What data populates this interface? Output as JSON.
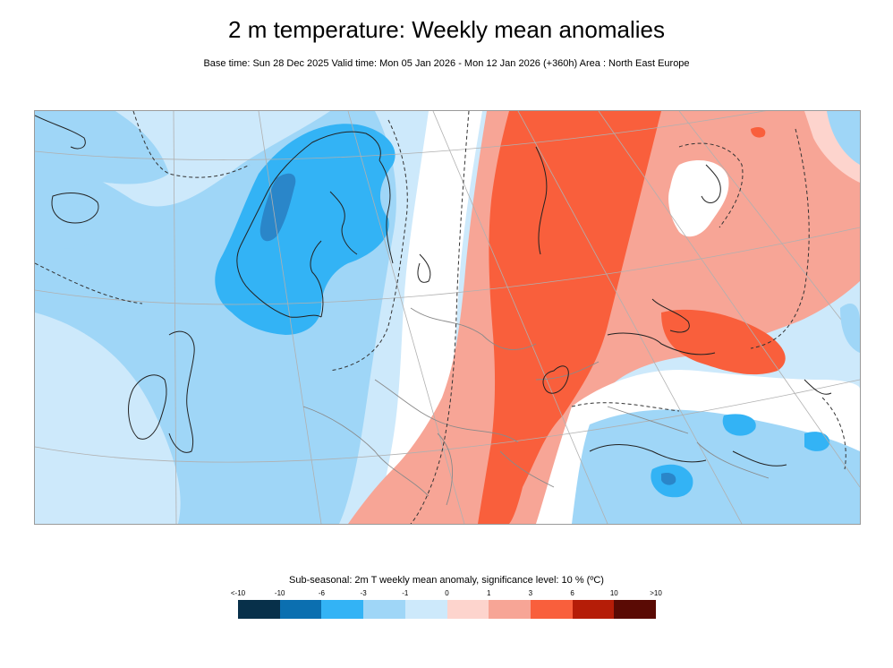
{
  "title": "2 m temperature: Weekly mean anomalies",
  "subtitle": "Base time: Sun 28 Dec 2025 Valid time: Mon 05 Jan 2026 - Mon 12 Jan 2026 (+360h) Area : North East Europe",
  "legend": {
    "title": "Sub-seasonal: 2m T weekly mean anomaly, significance level: 10 % (ºC)",
    "labels": [
      "<-10",
      "-10",
      "-6",
      "-3",
      "-1",
      "0",
      "1",
      "3",
      "6",
      "10",
      ">10"
    ],
    "colors": [
      "#08304a",
      "#0b6fb0",
      "#33b3f5",
      "#9fd6f7",
      "#cde9fb",
      "#fdd4cd",
      "#f7a596",
      "#f95f3c",
      "#b51d08",
      "#5a0a04"
    ]
  },
  "map": {
    "area": "North East Europe",
    "colors": {
      "very_cold": "#2a86c9",
      "cold": "#33b3f5",
      "cool": "#9fd6f7",
      "slightly_cool": "#cde9fb",
      "neutral": "#ffffff",
      "slightly_warm": "#fdd4cd",
      "warm": "#f7a596",
      "hot": "#f95f3c",
      "coast": "#222222",
      "border": "#8a8a8a",
      "significance": "#333333"
    }
  }
}
